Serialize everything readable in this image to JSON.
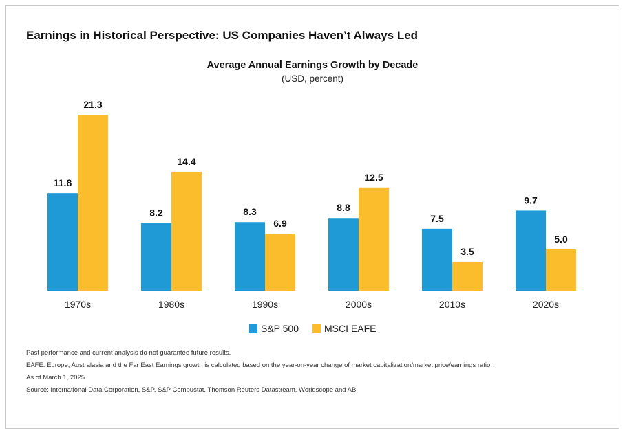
{
  "page": {
    "title": "Earnings in Historical Perspective: US Companies Haven’t Always Led"
  },
  "chart_data": {
    "type": "bar",
    "title": "Average Annual Earnings Growth by Decade",
    "subtitle": "(USD, percent)",
    "categories": [
      "1970s",
      "1980s",
      "1990s",
      "2000s",
      "2010s",
      "2020s"
    ],
    "series": [
      {
        "name": "S&P 500",
        "color": "#1f9ad6",
        "values": [
          11.8,
          8.2,
          8.3,
          8.8,
          7.5,
          9.7
        ]
      },
      {
        "name": "MSCI EAFE",
        "color": "#fbbd2c",
        "values": [
          21.3,
          14.4,
          6.9,
          12.5,
          3.5,
          5.0
        ]
      }
    ],
    "ylim": [
      0,
      21.3
    ],
    "grid": false,
    "legend_position": "bottom-center",
    "data_labels": true
  },
  "footnotes": [
    "Past performance and current analysis do not guarantee future results.",
    "EAFE: Europe, Australasia and the Far East Earnings growth is calculated based on the year-on-year change of market capitalization/market price/earnings ratio.",
    "As of March 1, 2025",
    "Source: International Data Corporation, S&P, S&P Compustat, Thomson Reuters Datastream, Worldscope and AB"
  ]
}
